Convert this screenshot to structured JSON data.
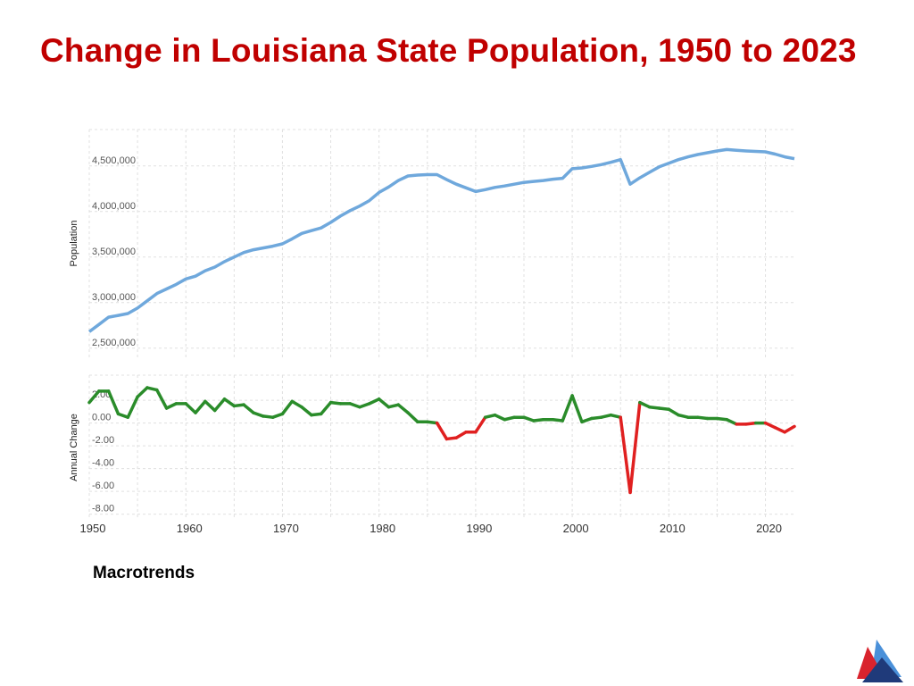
{
  "slide": {
    "title": "Change in Louisiana State Population, 1950 to 2023",
    "source": "Macrotrends"
  },
  "logo": {
    "name": "triangle-logo"
  },
  "colors": {
    "title": "#c00000",
    "population_line": "#6fa8dc",
    "change_positive": "#2a8c2a",
    "change_negative": "#e02020",
    "grid": "#e0e0e0",
    "tick_text": "#555555"
  },
  "chart_data": [
    {
      "type": "line",
      "title": "",
      "xlabel": "",
      "ylabel": "Population",
      "xlim": [
        1950,
        2023
      ],
      "ylim": [
        2400000,
        4900000
      ],
      "x_ticks": [
        1950,
        1960,
        1970,
        1980,
        1990,
        2000,
        2010,
        2020
      ],
      "x_tick_labels": [
        "1950",
        "1960",
        "1970",
        "1980",
        "1990",
        "2000",
        "2010",
        "2020"
      ],
      "y_ticks": [
        2500000,
        3000000,
        3500000,
        4000000,
        4500000
      ],
      "y_tick_labels": [
        "2,500,000",
        "3,000,000",
        "3,500,000",
        "4,000,000",
        "4,500,000"
      ],
      "series": [
        {
          "name": "Population",
          "x": [
            1950,
            1951,
            1952,
            1953,
            1954,
            1955,
            1956,
            1957,
            1958,
            1959,
            1960,
            1961,
            1962,
            1963,
            1964,
            1965,
            1966,
            1967,
            1968,
            1969,
            1970,
            1971,
            1972,
            1973,
            1974,
            1975,
            1976,
            1977,
            1978,
            1979,
            1980,
            1981,
            1982,
            1983,
            1984,
            1985,
            1986,
            1987,
            1988,
            1989,
            1990,
            1991,
            1992,
            1993,
            1994,
            1995,
            1996,
            1997,
            1998,
            1999,
            2000,
            2001,
            2002,
            2003,
            2004,
            2005,
            2006,
            2007,
            2008,
            2009,
            2010,
            2011,
            2012,
            2013,
            2014,
            2015,
            2016,
            2017,
            2018,
            2019,
            2020,
            2021,
            2022,
            2023
          ],
          "values": [
            2680000,
            2760000,
            2840000,
            2860000,
            2880000,
            2940000,
            3020000,
            3100000,
            3150000,
            3200000,
            3260000,
            3290000,
            3350000,
            3390000,
            3450000,
            3500000,
            3550000,
            3580000,
            3600000,
            3620000,
            3645000,
            3700000,
            3760000,
            3790000,
            3820000,
            3880000,
            3950000,
            4010000,
            4060000,
            4120000,
            4210000,
            4270000,
            4340000,
            4390000,
            4400000,
            4405000,
            4405000,
            4350000,
            4300000,
            4260000,
            4220000,
            4240000,
            4265000,
            4280000,
            4300000,
            4320000,
            4330000,
            4340000,
            4355000,
            4365000,
            4470000,
            4478000,
            4495000,
            4515000,
            4540000,
            4570000,
            4300000,
            4370000,
            4430000,
            4490000,
            4530000,
            4570000,
            4600000,
            4625000,
            4645000,
            4665000,
            4680000,
            4672000,
            4665000,
            4660000,
            4655000,
            4630000,
            4600000,
            4580000
          ]
        }
      ]
    },
    {
      "type": "line",
      "title": "",
      "xlabel": "",
      "ylabel": "Annual Change",
      "xlim": [
        1950,
        2023
      ],
      "ylim": [
        -8.5,
        4.2
      ],
      "x_ticks": [
        1950,
        1960,
        1970,
        1980,
        1990,
        2000,
        2010,
        2020
      ],
      "x_tick_labels": [
        "1950",
        "1960",
        "1970",
        "1980",
        "1990",
        "2000",
        "2010",
        "2020"
      ],
      "y_ticks": [
        2,
        0,
        -2,
        -4,
        -6,
        -8
      ],
      "y_tick_labels": [
        "2.00",
        "0.00",
        "-2.00",
        "-4.00",
        "-6.00",
        "-8.00"
      ],
      "series": [
        {
          "name": "Annual Change (%)",
          "x": [
            1950,
            1951,
            1952,
            1953,
            1954,
            1955,
            1956,
            1957,
            1958,
            1959,
            1960,
            1961,
            1962,
            1963,
            1964,
            1965,
            1966,
            1967,
            1968,
            1969,
            1970,
            1971,
            1972,
            1973,
            1974,
            1975,
            1976,
            1977,
            1978,
            1979,
            1980,
            1981,
            1982,
            1983,
            1984,
            1985,
            1986,
            1987,
            1988,
            1989,
            1990,
            1991,
            1992,
            1993,
            1994,
            1995,
            1996,
            1997,
            1998,
            1999,
            2000,
            2001,
            2002,
            2003,
            2004,
            2005,
            2006,
            2007,
            2008,
            2009,
            2010,
            2011,
            2012,
            2013,
            2014,
            2015,
            2016,
            2017,
            2018,
            2019,
            2020,
            2021,
            2022,
            2023
          ],
          "values": [
            1.8,
            2.8,
            2.8,
            0.8,
            0.5,
            2.3,
            3.1,
            2.9,
            1.3,
            1.7,
            1.7,
            0.9,
            1.9,
            1.1,
            2.1,
            1.5,
            1.6,
            0.9,
            0.6,
            0.5,
            0.8,
            1.9,
            1.4,
            0.7,
            0.8,
            1.8,
            1.7,
            1.7,
            1.4,
            1.7,
            2.1,
            1.4,
            1.6,
            0.9,
            0.1,
            0.1,
            0.0,
            -1.4,
            -1.3,
            -0.8,
            -0.8,
            0.5,
            0.7,
            0.3,
            0.5,
            0.5,
            0.2,
            0.3,
            0.3,
            0.2,
            2.4,
            0.1,
            0.4,
            0.5,
            0.7,
            0.5,
            -6.1,
            1.8,
            1.4,
            1.3,
            1.2,
            0.7,
            0.5,
            0.5,
            0.4,
            0.4,
            0.3,
            -0.1,
            -0.1,
            0.0,
            0.0,
            -0.4,
            -0.8,
            -0.3
          ]
        }
      ]
    }
  ]
}
